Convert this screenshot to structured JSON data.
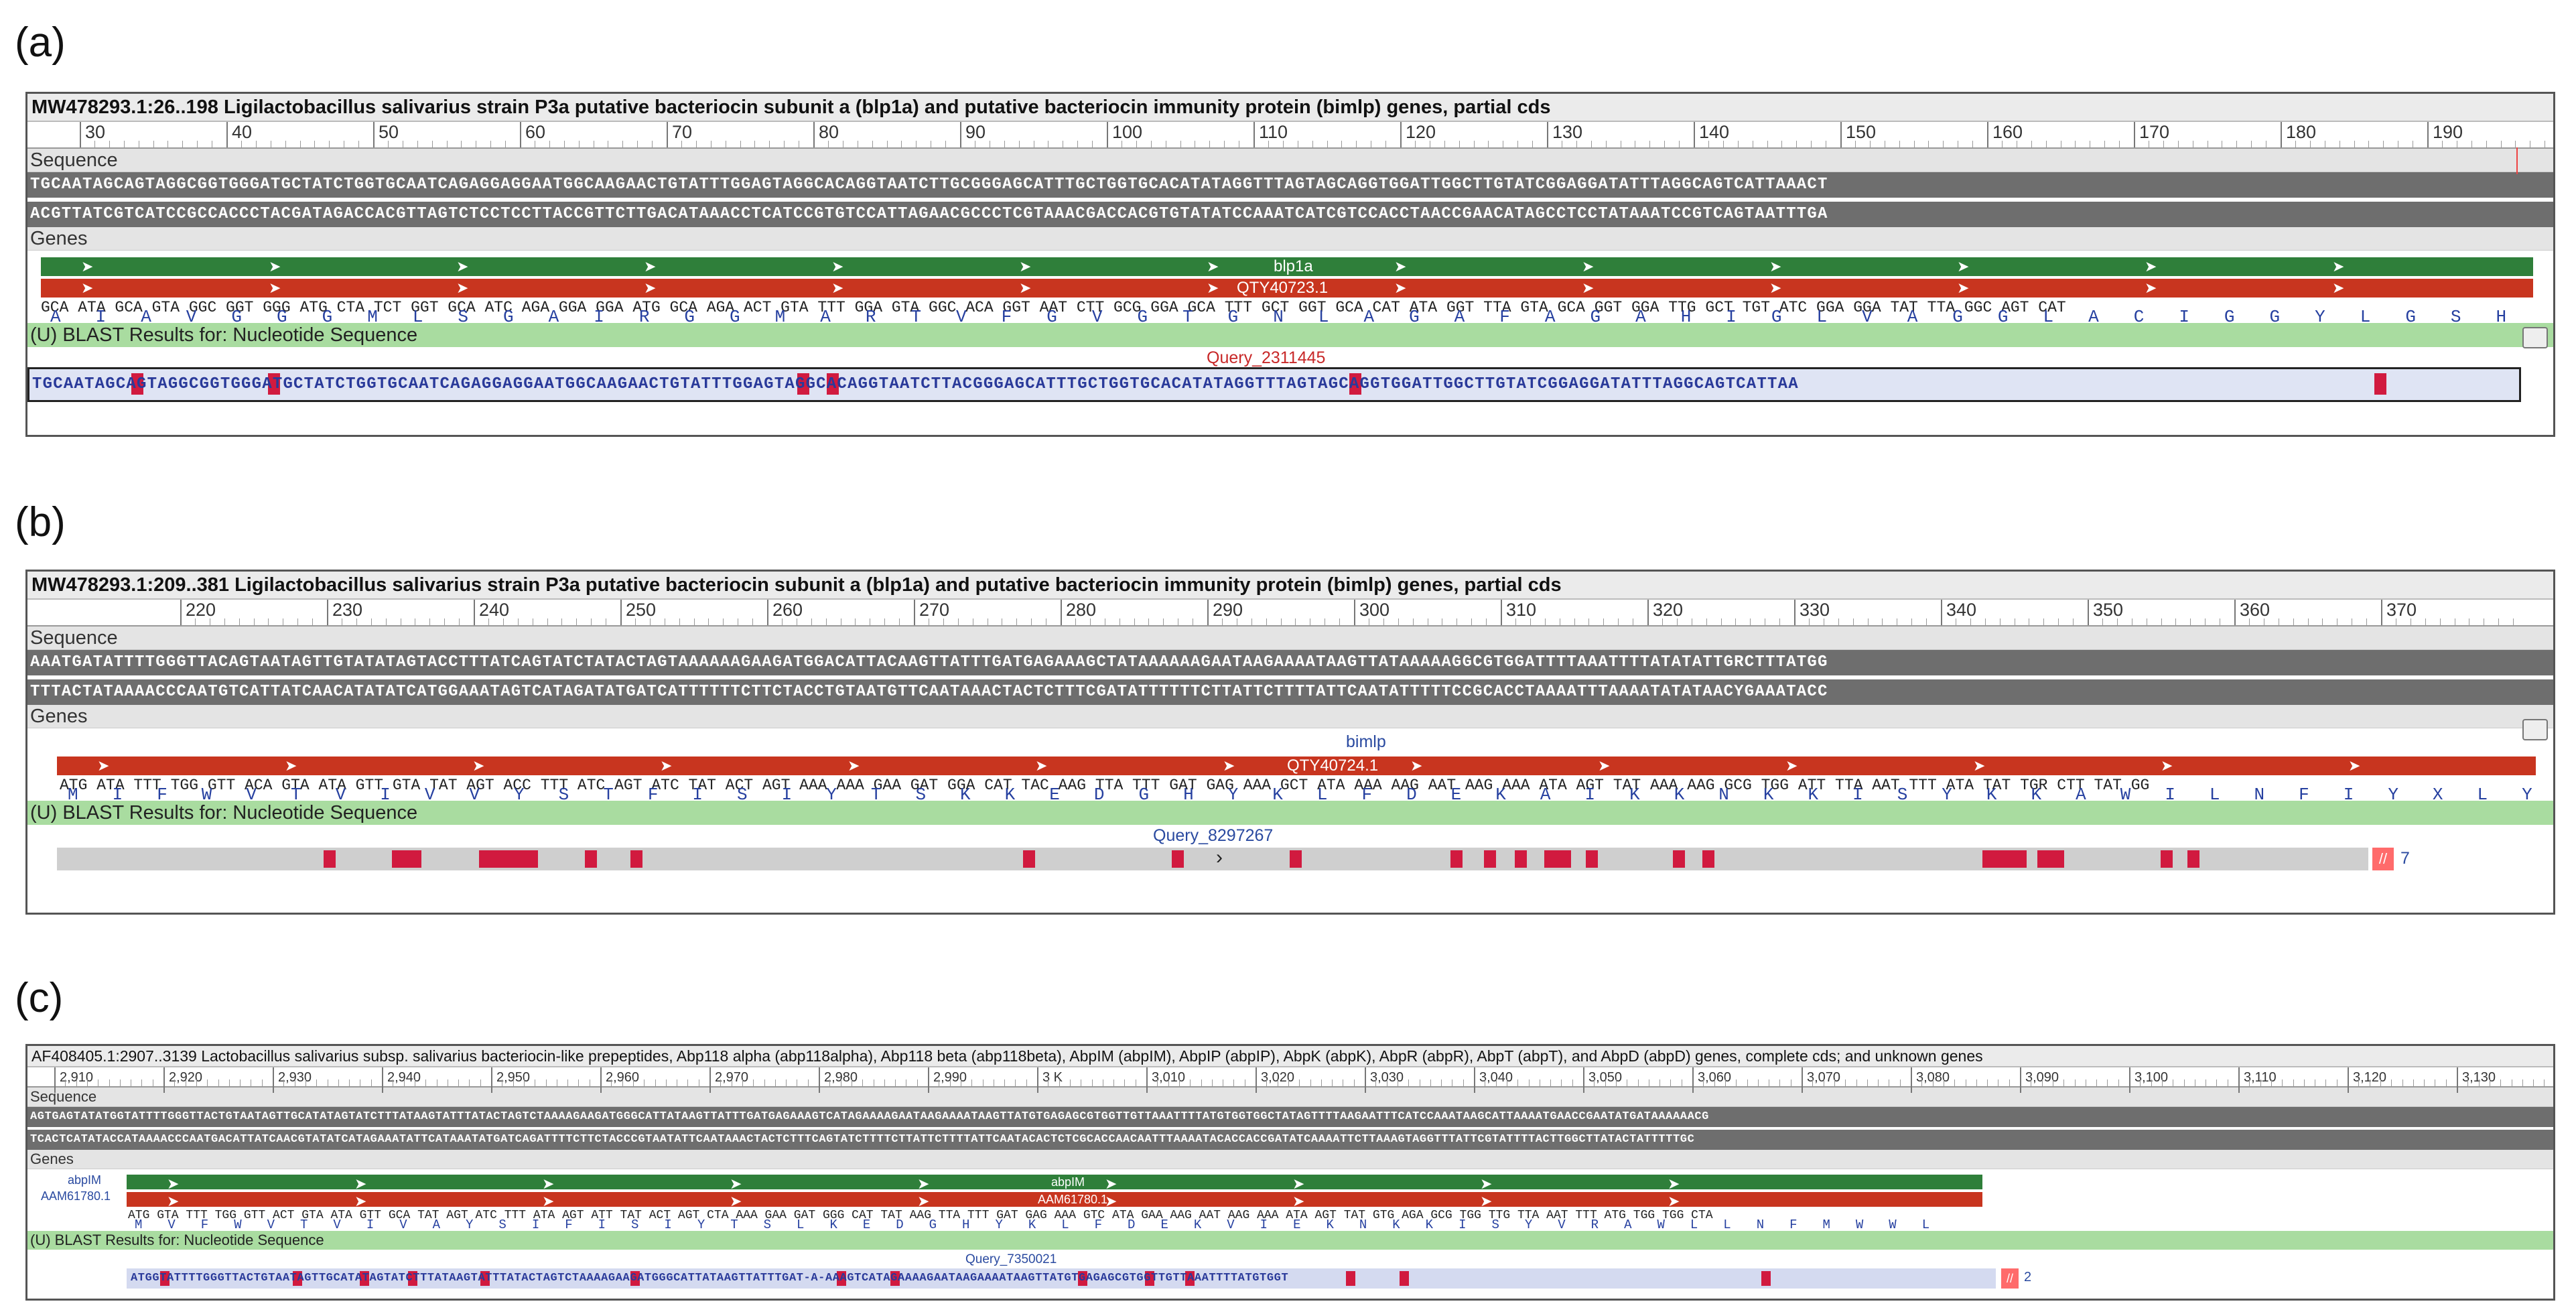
{
  "panels": [
    {
      "id": "a",
      "label": "(a)",
      "title": "MW478293.1:26..198 Ligilactobacillus salivarius strain P3a putative bacteriocin subunit a (blp1a) and putative bacteriocin immunity protein (bimlp) genes, partial cds",
      "ticks": [
        "30",
        "40",
        "50",
        "60",
        "70",
        "80",
        "90",
        "100",
        "110",
        "120",
        "130",
        "140",
        "150",
        "160",
        "170",
        "180",
        "190"
      ],
      "sequence_label": "Sequence",
      "seq_forward": "TGCAATAGCAGTAGGCGGTGGGATGCTATCTGGTGCAATCAGAGGAGGAATGGCAAGAACTGTATTTGGAGTAGGCACAGGTAATCTTGCGGGAGCATTTGCTGGTGCACATATAGGTTTAGTAGCAGGTGGATTGGCTTGTATCGGAGGATATTTAGGCAGTCATTAAACT",
      "seq_reverse": "ACGTTATCGTCATCCGCCACCCTACGATAGACCACGTTAGTCTCCTCCTTACCGTTCTTGACATAAACCTCATCCGTGTCCATTAGAACGCCCTCGTAAACGACCACGTGTATATCCAAATCATCGTCCACCTAACCGAACATAGCCTCCTATAAATCCGTCAGTAATTTGA",
      "genes_label": "Genes",
      "gene_name": "blp1a",
      "protein_name": "QTY40723.1",
      "codons": "GCA ATA GCA GTA GGC GGT GGG ATG CTA TCT GGT GCA ATC AGA GGA GGA ATG GCA AGA ACT GTA TTT GGA GTA GGC ACA GGT AAT CTT GCG GGA GCA TTT GCT GGT GCA CAT ATA GGT TTA GTA GCA GGT GGA TTG GCT TGT ATC GGA GGA TAT TTA GGC AGT CAT",
      "aa": "AIAVGGGMLSGAIRGGMARTVFGVGTGNLAGAFAGAHIGLVAGGLACIGGYLGSH",
      "blast_label": "(U) BLAST Results for: Nucleotide Sequence",
      "query_name": "Query_2311445",
      "query_seq": "TGCAATAGCAGTAGGCGGTGGGATGCTATCTGGTGCAATCAGAGGAGGAATGGCAAGAACTGTATTTGGAGTAGGCACAGGTAATCTTACGGGAGCATTTGCTGGTGCACATATAGGTTTAGTAGCAGGTGGATTGGCTTGTATCGGAGGATATTTAGGCAGTCATTAA"
    },
    {
      "id": "b",
      "label": "(b)",
      "title": "MW478293.1:209..381 Ligilactobacillus salivarius strain P3a putative bacteriocin subunit a (blp1a) and putative bacteriocin immunity protein (bimlp) genes, partial cds",
      "ticks": [
        "220",
        "230",
        "240",
        "250",
        "260",
        "270",
        "280",
        "290",
        "300",
        "310",
        "320",
        "330",
        "340",
        "350",
        "360",
        "370"
      ],
      "sequence_label": "Sequence",
      "seq_forward": "AAATGATATTTTGGGTTACAGTAATAGTTGTATATAGTACCTTTATCAGTATCTATACTAGTAAAAAAGAAGATGGACATTACAAGTTATTTGATGAGAAAGCTATAAAAAAGAATAAGAAAATAAGTTATAAAAAGGCGTGGATTTTAAATTTTATATATTGRCTTTATGG",
      "seq_reverse": "TTTACTATAAAACCCAATGTCATTATCAACATATATCATGGAAATAGTCATAGATATGATCATTTTTTCTTCTACCTGTAATGTTCAATAAACTACTCTTTCGATATTTTTTCTTATTCTTTTATTCAATATTTTTCCGCACCTAAAATTTAAAATATATAACYGAAATACC",
      "genes_label": "Genes",
      "gene_name": "bimlp",
      "protein_name": "QTY40724.1",
      "codons": "ATG ATA TTT TGG GTT ACA GTA ATA GTT GTA TAT AGT ACC TTT ATC AGT ATC TAT ACT AGT AAA AAA GAA GAT GGA CAT TAC AAG TTA TTT GAT GAG AAA GCT ATA AAA AAG AAT AAG AAA ATA AGT TAT AAA AAG GCG TGG ATT TTA AAT TTT ATA TAT TGR CTT TAT GG",
      "aa": "MIFWVTVIVVYSTFISIYTSKKEDGHYKLFDEKAIKKNKKISYKKAWILNFIYXLY",
      "blast_label": "(U) BLAST Results for: Nucleotide Sequence",
      "query_name": "Query_8297267",
      "query_count": "7"
    },
    {
      "id": "c",
      "label": "(c)",
      "title": "AF408405.1:2907..3139 Lactobacillus salivarius subsp. salivarius bacteriocin-like prepeptides, Abp118 alpha (abp118alpha), Abp118 beta (abp118beta), AbpIM (abpIM), AbpIP (abpIP), AbpK (abpK), AbpR (abpR), AbpT (abpT), and AbpD (abpD) genes, complete cds; and unknown genes",
      "ticks": [
        "2,910",
        "2,920",
        "2,930",
        "2,940",
        "2,950",
        "2,960",
        "2,970",
        "2,980",
        "2,990",
        "3 K",
        "3,010",
        "3,020",
        "3,030",
        "3,040",
        "3,050",
        "3,060",
        "3,070",
        "3,080",
        "3,090",
        "3,100",
        "3,110",
        "3,120",
        "3,130"
      ],
      "sequence_label": "Sequence",
      "seq_forward": "AGTGAGTATATGGTATTTTGGGTTACTGTAATAGTTGCATATAGTATCTTTATAAGTATTTATACTAGTCTAAAAGAAGATGGGCATTATAAGTTATTTGATGAGAAAGTCATAGAAAAGAATAAGAAAATAAGTTATGTGAGAGCGTGGTTGTTAAATTTTATGTGGTGGCTATAGTTTTAAGAATTTCATCCAAATAAGCATTAAAATGAACCGAATATGATAAAAAACG",
      "seq_reverse": "TCACTCATATACCATAAAACCCAATGACATTATCAACGTATATCATAGAAATATTCATAAATATGATCAGATTTTCTTCTACCCGTAATATTCAATAAACTACTCTTTCAGTATCTTTTCTTATTCTTTTATTCAATACACTCTCGCACCAACAATTTAAAATACACCACCGATATCAAAATTCTTAAAGTAGGTTTATTCGTATTTTACTTGGCTTATACTATTTTTGC",
      "genes_label": "Genes",
      "gene_name": "abpIM",
      "protein_name": "AAM61780.1",
      "codons": "ATG GTA TTT TGG GTT ACT GTA ATA GTT GCA TAT AGT ATC TTT ATA AGT ATT TAT ACT AGT CTA AAA GAA GAT GGG CAT TAT AAG TTA TTT GAT GAG AAA GTC ATA GAA AAG AAT AAG AAA ATA AGT TAT GTG AGA GCG TGG TTG TTA AAT TTT ATG TGG TGG CTA",
      "aa": "MVFWVTVIVAYSIFISIYTSLKEDGHYKLFDEKVIEKNKKISYVRAWLLNFMWWL",
      "blast_label": "(U) BLAST Results for: Nucleotide Sequence",
      "query_name": "Query_7350021",
      "query_seq": "ATGGTATTTTGGGTTACTGTAATAGTTGCATATAGTATCTTTATAAGTATTTATACTAGTCTAAAAGAAGATGGGCATTATAAGTTATTTGAT-A-AAAGTCATAGAAAAGAATAAGAAAATAAGTTATGTGAGAGCGTGGTTGTTAAATTTTATGTGGT",
      "query_count": "2"
    }
  ],
  "colors": {
    "gene_green": "#2f7f3a",
    "protein_red": "#c8351f",
    "mismatch": "#d11a3f",
    "blast_bar": "#a9dca0"
  }
}
